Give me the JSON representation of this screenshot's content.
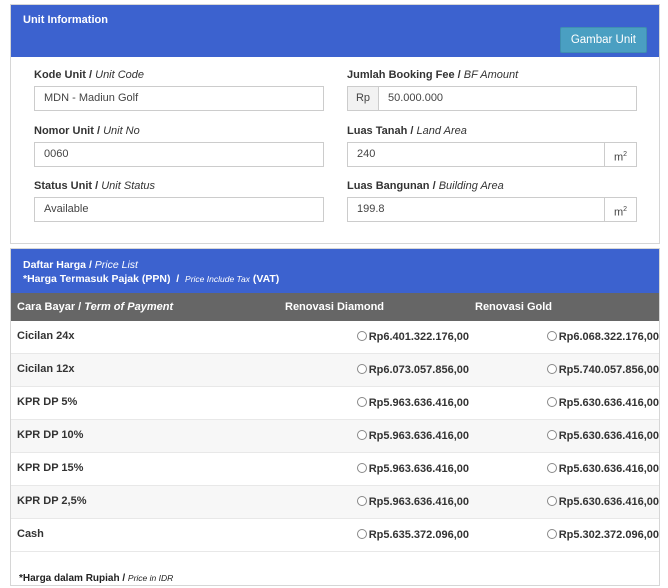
{
  "unit_panel": {
    "title": "Unit Information",
    "gambar_button": "Gambar Unit",
    "fields": {
      "kode_unit": {
        "label": "Kode Unit",
        "label_en": "Unit Code",
        "value": "MDN - Madiun Golf"
      },
      "nomor_unit": {
        "label": "Nomor Unit",
        "label_en": "Unit No",
        "value": "0060"
      },
      "status_unit": {
        "label": "Status Unit",
        "label_en": "Unit Status",
        "value": "Available"
      },
      "booking_fee": {
        "label": "Jumlah Booking Fee",
        "label_en": "BF Amount",
        "prefix": "Rp",
        "value": "50.000.000"
      },
      "luas_tanah": {
        "label": "Luas Tanah",
        "label_en": "Land Area",
        "value": "240",
        "unit": "m",
        "unit_sup": "2"
      },
      "luas_bangunan": {
        "label": "Luas Bangunan",
        "label_en": "Building Area",
        "value": "199.8",
        "unit": "m",
        "unit_sup": "2"
      }
    }
  },
  "price_panel": {
    "title": "Daftar Harga",
    "title_en": "Price List",
    "tax_note": "*Harga Termasuk Pajak (PPN)",
    "tax_note_en": "Price Include Tax",
    "tax_note_vat": "(VAT)",
    "columns": {
      "payment": "Cara Bayar",
      "payment_en": "Term of Payment",
      "diamond": "Renovasi Diamond",
      "gold": "Renovasi Gold"
    },
    "rows": [
      {
        "name": "Cicilan 24x",
        "diamond": "Rp6.401.322.176,00",
        "gold": "Rp6.068.322.176,00"
      },
      {
        "name": "Cicilan 12x",
        "diamond": "Rp6.073.057.856,00",
        "gold": "Rp5.740.057.856,00"
      },
      {
        "name": "KPR DP 5%",
        "diamond": "Rp5.963.636.416,00",
        "gold": "Rp5.630.636.416,00"
      },
      {
        "name": "KPR DP 10%",
        "diamond": "Rp5.963.636.416,00",
        "gold": "Rp5.630.636.416,00"
      },
      {
        "name": "KPR DP 15%",
        "diamond": "Rp5.963.636.416,00",
        "gold": "Rp5.630.636.416,00"
      },
      {
        "name": "KPR DP 2,5%",
        "diamond": "Rp5.963.636.416,00",
        "gold": "Rp5.630.636.416,00"
      },
      {
        "name": "Cash",
        "diamond": "Rp5.635.372.096,00",
        "gold": "Rp5.302.372.096,00"
      }
    ],
    "footnote": "*Harga dalam Rupiah /",
    "footnote_en": "Price in IDR"
  },
  "colors": {
    "header_blue": "#3c62cf",
    "button_teal": "#4a9fc2",
    "table_header_gray": "#666666"
  }
}
